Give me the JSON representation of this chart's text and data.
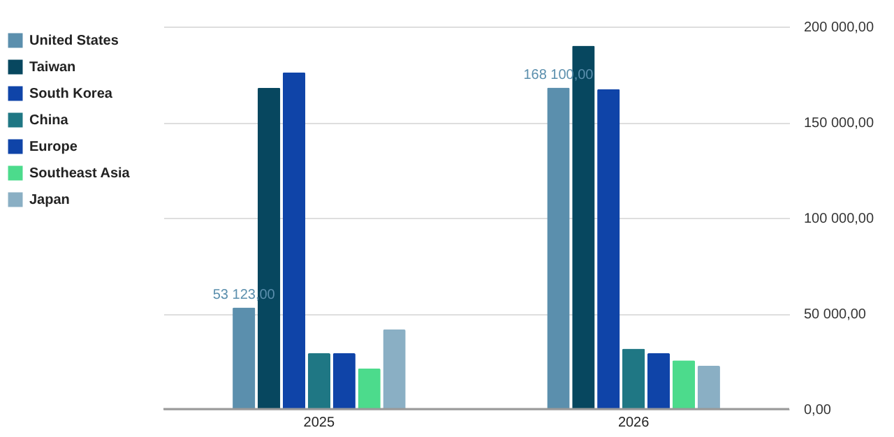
{
  "chart_data": {
    "type": "bar",
    "categories": [
      "2025",
      "2026"
    ],
    "series": [
      {
        "name": "United States",
        "color": "#5b8fad",
        "values": [
          53123,
          168100
        ],
        "value_labels": [
          "53 123,00",
          "168 100,00"
        ]
      },
      {
        "name": "Taiwan",
        "color": "#07475f",
        "values": [
          168000,
          190000
        ]
      },
      {
        "name": "South Korea",
        "color": "#0f44a8",
        "values": [
          176000,
          167200
        ]
      },
      {
        "name": "China",
        "color": "#1f7784",
        "values": [
          29200,
          31600
        ]
      },
      {
        "name": "Europe",
        "color": "#0f44a8",
        "values": [
          29200,
          29200
        ]
      },
      {
        "name": "Southeast Asia",
        "color": "#4cdb8c",
        "values": [
          21200,
          25500
        ]
      },
      {
        "name": "Japan",
        "color": "#8aafc4",
        "values": [
          41600,
          22600
        ]
      }
    ],
    "ylim": [
      0,
      200000
    ],
    "yticks": [
      {
        "value": 0,
        "label": "0,00"
      },
      {
        "value": 50000,
        "label": "50 000,00"
      },
      {
        "value": 100000,
        "label": "100 000,00"
      },
      {
        "value": 150000,
        "label": "150 000,00"
      },
      {
        "value": 200000,
        "label": "200 000,00"
      }
    ],
    "grid": "y",
    "legend": "left"
  }
}
